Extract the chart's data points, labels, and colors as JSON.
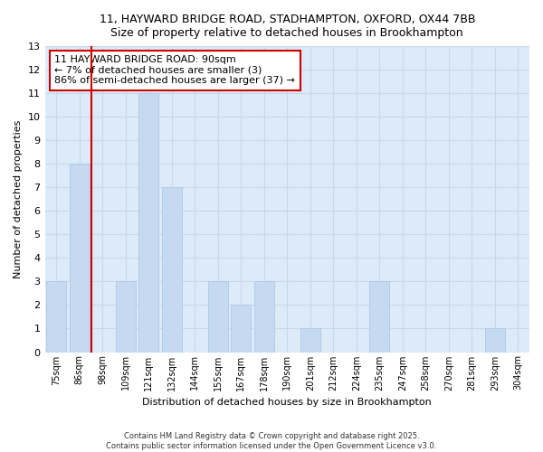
{
  "title1": "11, HAYWARD BRIDGE ROAD, STADHAMPTON, OXFORD, OX44 7BB",
  "title2": "Size of property relative to detached houses in Brookhampton",
  "xlabel": "Distribution of detached houses by size in Brookhampton",
  "ylabel": "Number of detached properties",
  "bar_labels": [
    "75sqm",
    "86sqm",
    "98sqm",
    "109sqm",
    "121sqm",
    "132sqm",
    "144sqm",
    "155sqm",
    "167sqm",
    "178sqm",
    "190sqm",
    "201sqm",
    "212sqm",
    "224sqm",
    "235sqm",
    "247sqm",
    "258sqm",
    "270sqm",
    "281sqm",
    "293sqm",
    "304sqm"
  ],
  "bar_values": [
    3,
    8,
    0,
    3,
    11,
    7,
    0,
    3,
    2,
    3,
    0,
    1,
    0,
    0,
    3,
    0,
    0,
    0,
    0,
    1,
    0
  ],
  "bar_color": "#c5d9f0",
  "bar_edge_color": "#aec8e8",
  "vline_x_index": 1.5,
  "vline_color": "#cc0000",
  "ylim": [
    0,
    13
  ],
  "yticks": [
    0,
    1,
    2,
    3,
    4,
    5,
    6,
    7,
    8,
    9,
    10,
    11,
    12,
    13
  ],
  "annotation_title": "11 HAYWARD BRIDGE ROAD: 90sqm",
  "annotation_line1": "← 7% of detached houses are smaller (3)",
  "annotation_line2": "86% of semi-detached houses are larger (37) →",
  "annotation_box_facecolor": "#ffffff",
  "annotation_box_edgecolor": "#cc0000",
  "footer1": "Contains HM Land Registry data © Crown copyright and database right 2025.",
  "footer2": "Contains public sector information licensed under the Open Government Licence v3.0.",
  "grid_color": "#c8d8ec",
  "plot_bg_color": "#ddeaf7",
  "fig_bg_color": "#ffffff",
  "title_fontsize": 9,
  "ylabel_fontsize": 8,
  "xlabel_fontsize": 8,
  "tick_fontsize": 7,
  "footer_fontsize": 6,
  "ann_fontsize": 8
}
